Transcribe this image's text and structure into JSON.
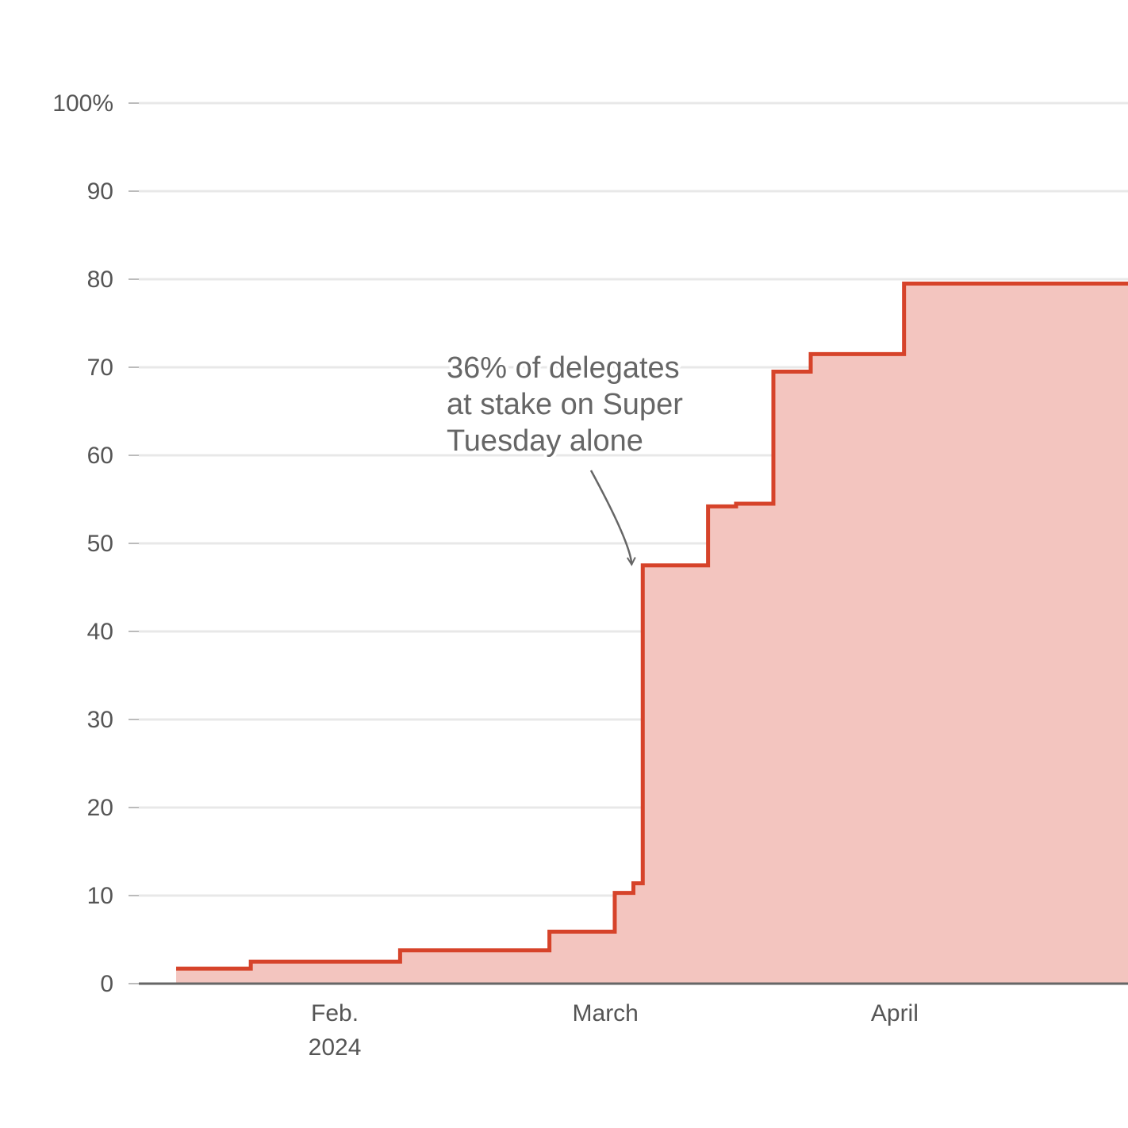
{
  "chart_data": {
    "type": "area",
    "title": "",
    "xlabel": "",
    "ylabel": "",
    "step": "after",
    "ylim": [
      0,
      100
    ],
    "xlim": [
      "2024-01-11",
      "2024-04-26"
    ],
    "y_ticks": [
      0,
      10,
      20,
      30,
      40,
      50,
      60,
      70,
      80,
      90,
      100
    ],
    "y_tick_labels": [
      "0",
      "10",
      "20",
      "30",
      "40",
      "50",
      "60",
      "70",
      "80",
      "90",
      "100%"
    ],
    "x_ticks": [
      {
        "date": "2024-02-01",
        "label": "Feb.",
        "sublabel": "2024"
      },
      {
        "date": "2024-03-01",
        "label": "March",
        "sublabel": ""
      },
      {
        "date": "2024-04-01",
        "label": "April",
        "sublabel": ""
      }
    ],
    "grid": true,
    "colors": {
      "line": "#d6432a",
      "fill": "#f3c5bf",
      "grid": "#e8e8e8",
      "axis": "#666666",
      "tick": "#bbbbbb",
      "annotation": "#666666"
    },
    "series": [
      {
        "values": [
          {
            "x": "2024-01-15",
            "y": 1.7
          },
          {
            "x": "2024-01-23",
            "y": 2.5
          },
          {
            "x": "2024-02-08",
            "y": 3.8
          },
          {
            "x": "2024-02-24",
            "y": 5.9
          },
          {
            "x": "2024-03-02",
            "y": 10.3
          },
          {
            "x": "2024-03-04",
            "y": 11.4
          },
          {
            "x": "2024-03-05",
            "y": 47.5
          },
          {
            "x": "2024-03-12",
            "y": 54.2
          },
          {
            "x": "2024-03-15",
            "y": 54.5
          },
          {
            "x": "2024-03-19",
            "y": 69.5
          },
          {
            "x": "2024-03-23",
            "y": 71.5
          },
          {
            "x": "2024-04-02",
            "y": 79.5
          },
          {
            "x": "2024-04-26",
            "y": 79.5
          }
        ]
      }
    ],
    "annotations": [
      {
        "text_lines": [
          "36% of delegates",
          "at stake on Super",
          "Tuesday alone"
        ],
        "target": {
          "x": "2024-03-05",
          "y": 47.5
        }
      }
    ]
  }
}
